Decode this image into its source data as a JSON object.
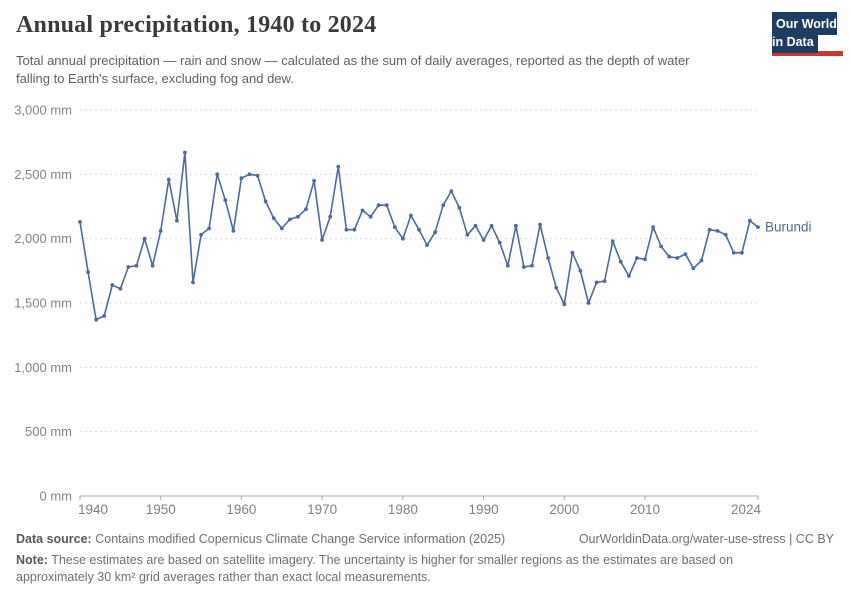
{
  "header": {
    "title": "Annual precipitation, 1940 to 2024",
    "subtitle": "Total annual precipitation — rain and snow — calculated as the sum of daily averages, reported as the depth of water falling to Earth's surface, excluding fog and dew.",
    "logo_line1": "Our World",
    "logo_line2": "in Data",
    "logo_bg_color": "#1d3d63",
    "logo_bar_color": "#c5392e"
  },
  "chart_data": {
    "type": "line",
    "title": "Annual precipitation, 1940 to 2024",
    "entity_label": "Burundi",
    "unit": "mm",
    "grid": "dashed-horizontal",
    "legend_position": "end-of-line",
    "line_color": "#4c6a9c",
    "axis_color": "#a8a8a8",
    "gridline_color": "#dadada",
    "tick_label_color": "#848484",
    "xlim": [
      1940,
      2024
    ],
    "ylim": [
      0,
      3000
    ],
    "xticks": [
      1940,
      1950,
      1960,
      1970,
      1980,
      1990,
      2000,
      2010,
      2024
    ],
    "yticks": [
      0,
      500,
      1000,
      1500,
      2000,
      2500,
      3000
    ],
    "ytick_labels": [
      "0 mm",
      "500 mm",
      "1,000 mm",
      "1,500 mm",
      "2,000 mm",
      "2,500 mm",
      "3,000 mm"
    ],
    "x": [
      1940,
      1941,
      1942,
      1943,
      1944,
      1945,
      1946,
      1947,
      1948,
      1949,
      1950,
      1951,
      1952,
      1953,
      1954,
      1955,
      1956,
      1957,
      1958,
      1959,
      1960,
      1961,
      1962,
      1963,
      1964,
      1965,
      1966,
      1967,
      1968,
      1969,
      1970,
      1971,
      1972,
      1973,
      1974,
      1975,
      1976,
      1977,
      1978,
      1979,
      1980,
      1981,
      1982,
      1983,
      1984,
      1985,
      1986,
      1987,
      1988,
      1989,
      1990,
      1991,
      1992,
      1993,
      1994,
      1995,
      1996,
      1997,
      1998,
      1999,
      2000,
      2001,
      2002,
      2003,
      2004,
      2005,
      2006,
      2007,
      2008,
      2009,
      2010,
      2011,
      2012,
      2013,
      2014,
      2015,
      2016,
      2017,
      2018,
      2019,
      2020,
      2021,
      2022,
      2023,
      2024
    ],
    "values": [
      2130,
      1740,
      1370,
      1400,
      1640,
      1610,
      1780,
      1790,
      2000,
      1790,
      2060,
      2460,
      2140,
      2670,
      1660,
      2030,
      2080,
      2500,
      2300,
      2060,
      2470,
      2500,
      2490,
      2290,
      2160,
      2080,
      2150,
      2170,
      2230,
      2450,
      1990,
      2170,
      2560,
      2070,
      2070,
      2220,
      2170,
      2260,
      2260,
      2090,
      2000,
      2180,
      2070,
      1950,
      2050,
      2260,
      2370,
      2240,
      2030,
      2100,
      1990,
      2100,
      1970,
      1790,
      2100,
      1780,
      1790,
      2110,
      1850,
      1620,
      1490,
      1890,
      1750,
      1500,
      1660,
      1670,
      1980,
      1820,
      1710,
      1850,
      1840,
      2090,
      1940,
      1860,
      1850,
      1880,
      1770,
      1830,
      2070,
      2060,
      2030,
      1890,
      1890,
      2140,
      2090
    ]
  },
  "footer": {
    "source_label": "Data source:",
    "source_text": "Contains modified Copernicus Climate Change Service information (2025)",
    "url": "OurWorldinData.org/water-use-stress | CC BY",
    "note_label": "Note:",
    "note_text": "These estimates are based on satellite imagery. The uncertainty is higher for smaller regions as the estimates are based on approximately 30 km² grid averages rather than exact local measurements."
  }
}
